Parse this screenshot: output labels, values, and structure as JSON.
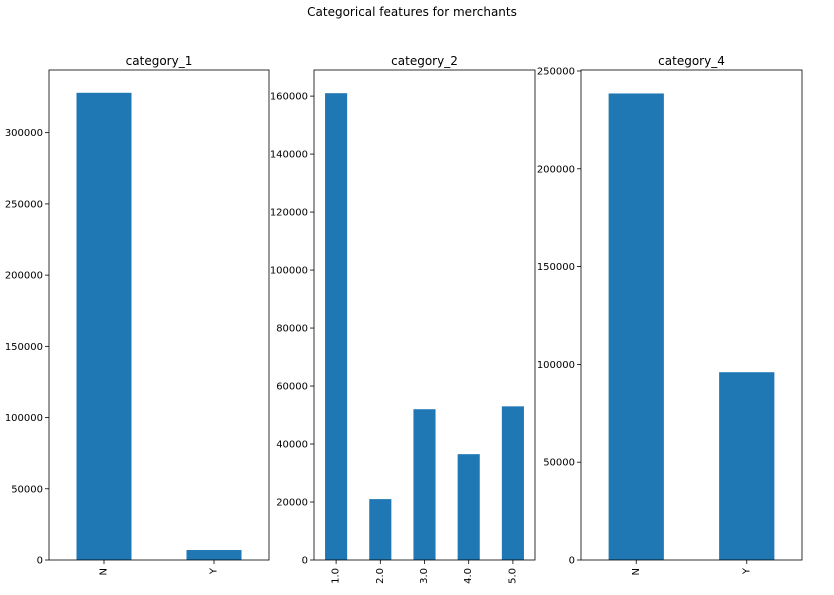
{
  "figure": {
    "title": "Categorical features for merchants"
  },
  "colors": {
    "bar": "#1f77b4",
    "background": "#ffffff",
    "axes": "#000000"
  },
  "chart_data": [
    {
      "type": "bar",
      "title": "category_1",
      "categories": [
        "N",
        "Y"
      ],
      "values": [
        328000,
        7000
      ],
      "yticks": [
        0,
        50000,
        100000,
        150000,
        200000,
        250000,
        300000
      ],
      "ytick_labels": [
        "0",
        "50000",
        "100000",
        "150000",
        "200000",
        "250000",
        "300000"
      ],
      "ylim": [
        0,
        344000
      ],
      "xlabel": "",
      "ylabel": "",
      "grid": false
    },
    {
      "type": "bar",
      "title": "category_2",
      "categories": [
        "1.0",
        "2.0",
        "3.0",
        "4.0",
        "5.0"
      ],
      "values": [
        161000,
        21000,
        52000,
        36500,
        53000
      ],
      "yticks": [
        0,
        20000,
        40000,
        60000,
        80000,
        100000,
        120000,
        140000,
        160000
      ],
      "ytick_labels": [
        "0",
        "20000",
        "40000",
        "60000",
        "80000",
        "100000",
        "120000",
        "140000",
        "160000"
      ],
      "ylim": [
        0,
        169000
      ],
      "xlabel": "",
      "ylabel": "",
      "grid": false
    },
    {
      "type": "bar",
      "title": "category_4",
      "categories": [
        "N",
        "Y"
      ],
      "values": [
        238500,
        96000
      ],
      "yticks": [
        0,
        50000,
        100000,
        150000,
        200000,
        250000
      ],
      "ytick_labels": [
        "0",
        "50000",
        "100000",
        "150000",
        "200000",
        "250000"
      ],
      "ylim": [
        0,
        250500
      ],
      "xlabel": "",
      "ylabel": "",
      "grid": false
    }
  ]
}
